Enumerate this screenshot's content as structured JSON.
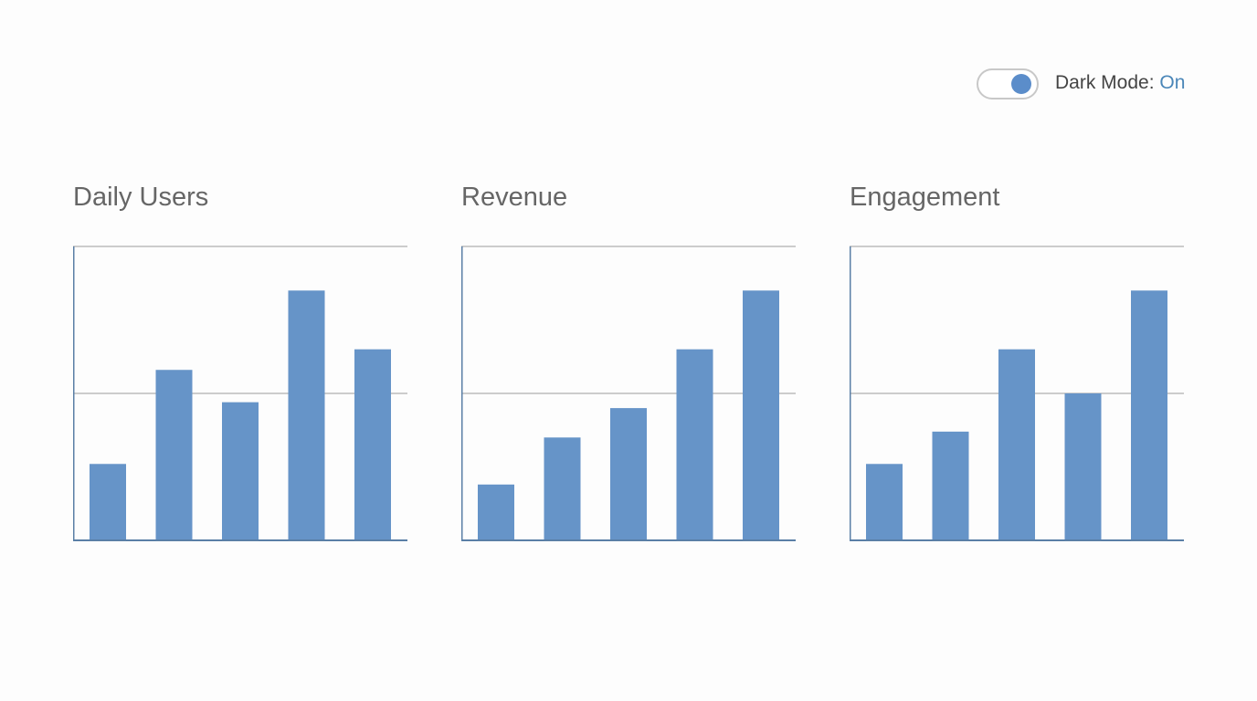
{
  "toggle": {
    "label": "Dark Mode:",
    "state": "On",
    "checked": true
  },
  "colors": {
    "bar": "#6694c8",
    "axis": "#5a7fa6",
    "grid": "#bbbbbb",
    "accent": "#4a86b8"
  },
  "chart_data": [
    {
      "type": "bar",
      "title": "Daily Users",
      "values": [
        0.26,
        0.58,
        0.47,
        0.85,
        0.65
      ],
      "ylim": [
        0,
        1
      ],
      "grid": true
    },
    {
      "type": "bar",
      "title": "Revenue",
      "values": [
        0.19,
        0.35,
        0.45,
        0.65,
        0.85
      ],
      "ylim": [
        0,
        1
      ],
      "grid": true
    },
    {
      "type": "bar",
      "title": "Engagement",
      "values": [
        0.26,
        0.37,
        0.65,
        0.5,
        0.85
      ],
      "ylim": [
        0,
        1
      ],
      "grid": true
    }
  ]
}
